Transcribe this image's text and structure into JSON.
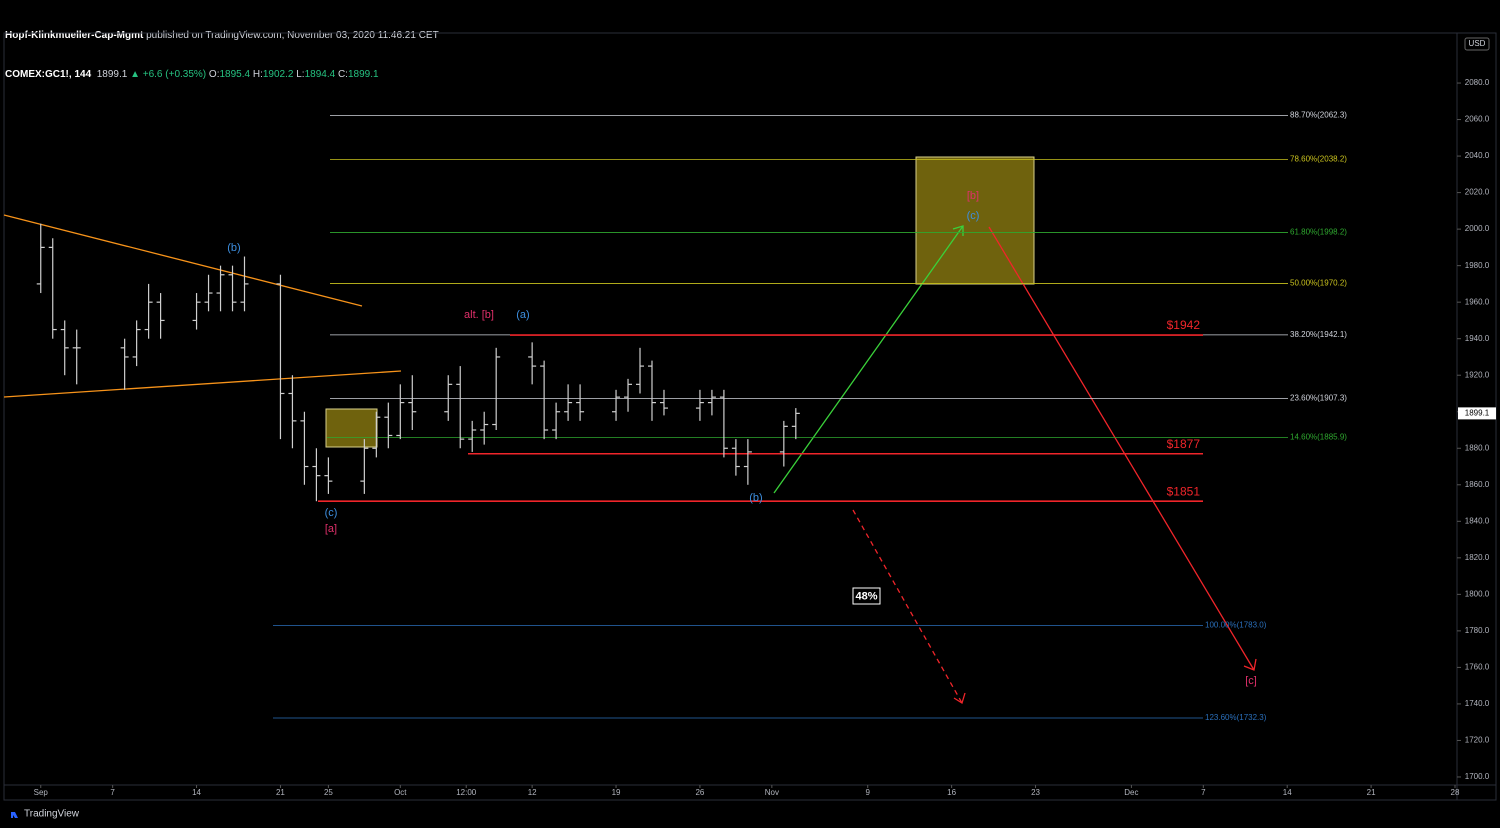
{
  "header": {
    "author": "Hopf-Klinkmueller-Cap-Mgmt",
    "published": "published on TradingView.com, November 03, 2020 11:46:21 CET",
    "symbol": "COMEX:GC1!, 144",
    "last": "1899.1",
    "change": "▲ +6.6 (+0.35%)",
    "ohlc": [
      {
        "label": "O:",
        "value": "1895.4"
      },
      {
        "label": "H:",
        "value": "1902.2"
      },
      {
        "label": "L:",
        "value": "1894.4"
      },
      {
        "label": "C:",
        "value": "1899.1"
      }
    ]
  },
  "chart_data": {
    "type": "ohlc",
    "color": "#cfcfcf",
    "currency": "USD",
    "x": [
      0,
      1,
      2,
      3,
      7,
      8,
      9,
      10,
      13,
      14,
      15,
      16,
      17,
      20,
      21,
      22,
      23,
      24,
      27,
      28,
      29,
      30,
      31,
      34,
      35,
      36,
      37,
      38,
      41,
      42,
      43,
      44,
      45,
      48,
      49,
      50,
      51,
      52,
      55,
      56,
      57,
      58,
      59,
      62,
      63
    ],
    "open": [
      1970,
      1990,
      1945,
      1935,
      1935,
      1930,
      1945,
      1960,
      1950,
      1960,
      1965,
      1975,
      1960,
      1970,
      1910,
      1895,
      1870,
      1865,
      1862,
      1880,
      1897,
      1887,
      1905,
      1900,
      1915,
      1885,
      1890,
      1893,
      1930,
      1925,
      1890,
      1900,
      1905,
      1900,
      1908,
      1915,
      1925,
      1905,
      1902,
      1905,
      1908,
      1880,
      1870,
      1878,
      1892
    ],
    "high": [
      2003,
      1995,
      1950,
      1945,
      1940,
      1950,
      1970,
      1965,
      1965,
      1975,
      1980,
      1980,
      1985,
      1975,
      1920,
      1900,
      1880,
      1875,
      1885,
      1900,
      1905,
      1915,
      1920,
      1920,
      1925,
      1895,
      1900,
      1935,
      1938,
      1928,
      1905,
      1915,
      1915,
      1912,
      1918,
      1935,
      1928,
      1912,
      1912,
      1912,
      1912,
      1885,
      1885,
      1895,
      1902
    ],
    "low": [
      1965,
      1940,
      1920,
      1915,
      1912,
      1925,
      1940,
      1940,
      1945,
      1955,
      1955,
      1955,
      1955,
      1885,
      1880,
      1860,
      1851,
      1855,
      1855,
      1875,
      1880,
      1885,
      1890,
      1895,
      1880,
      1878,
      1882,
      1890,
      1915,
      1885,
      1885,
      1895,
      1895,
      1895,
      1900,
      1910,
      1895,
      1898,
      1895,
      1898,
      1875,
      1865,
      1860,
      1870,
      1885
    ],
    "close": [
      1990,
      1945,
      1935,
      1935,
      1930,
      1945,
      1960,
      1950,
      1960,
      1965,
      1975,
      1960,
      1970,
      1910,
      1895,
      1870,
      1865,
      1862,
      1880,
      1897,
      1887,
      1905,
      1900,
      1915,
      1885,
      1890,
      1893,
      1930,
      1925,
      1890,
      1900,
      1905,
      1900,
      1908,
      1915,
      1925,
      1905,
      1902,
      1905,
      1908,
      1880,
      1870,
      1878,
      1892,
      1899.1
    ],
    "xlim": [
      -3.4,
      118
    ],
    "xticks": [
      {
        "value": 0,
        "label": "Sep"
      },
      {
        "value": 6,
        "label": "7"
      },
      {
        "value": 13,
        "label": "14"
      },
      {
        "value": 20,
        "label": "21"
      },
      {
        "value": 24,
        "label": "25"
      },
      {
        "value": 30,
        "label": "Oct"
      },
      {
        "value": 35.5,
        "label": "12:00"
      },
      {
        "value": 41,
        "label": "12"
      },
      {
        "value": 48,
        "label": "19"
      },
      {
        "value": 55,
        "label": "26"
      },
      {
        "value": 61,
        "label": "Nov"
      },
      {
        "value": 69,
        "label": "9"
      },
      {
        "value": 76,
        "label": "16"
      },
      {
        "value": 83,
        "label": "23"
      },
      {
        "value": 91,
        "label": "Dec"
      },
      {
        "value": 97,
        "label": "7"
      },
      {
        "value": 104,
        "label": "14"
      },
      {
        "value": 111,
        "label": "21"
      },
      {
        "value": 118,
        "label": "28"
      }
    ],
    "ylim": [
      1695.6,
      2107.4
    ],
    "yticks": [
      {
        "value": 1700,
        "label": "1700.0"
      },
      {
        "value": 1720,
        "label": "1720.0"
      },
      {
        "value": 1740,
        "label": "1740.0"
      },
      {
        "value": 1760,
        "label": "1760.0"
      },
      {
        "value": 1780,
        "label": "1780.0"
      },
      {
        "value": 1800,
        "label": "1800.0"
      },
      {
        "value": 1820,
        "label": "1820.0"
      },
      {
        "value": 1840,
        "label": "1840.0"
      },
      {
        "value": 1860,
        "label": "1860.0"
      },
      {
        "value": 1880,
        "label": "1880.0"
      },
      {
        "value": 1900,
        "label": "1900.0"
      },
      {
        "value": 1920,
        "label": "1920.0"
      },
      {
        "value": 1940,
        "label": "1940.0"
      },
      {
        "value": 1960,
        "label": "1960.0"
      },
      {
        "value": 1980,
        "label": "1980.0"
      },
      {
        "value": 2000,
        "label": "2000.0"
      },
      {
        "value": 2020,
        "label": "2020.0"
      },
      {
        "value": 2040,
        "label": "2040.0"
      },
      {
        "value": 2060,
        "label": "2060.0"
      },
      {
        "value": 2080,
        "label": "2080.0"
      }
    ],
    "fib_levels": [
      {
        "label": "88.70%(2062.3)",
        "price": 2062.3,
        "color": "#d1d4dc"
      },
      {
        "label": "78.60%(2038.2)",
        "price": 2038.2,
        "color": "#c9c21e"
      },
      {
        "label": "61.80%(1998.2)",
        "price": 1998.2,
        "color": "#2fa82f"
      },
      {
        "label": "50.00%(1970.2)",
        "price": 1970.2,
        "color": "#c9c21e"
      },
      {
        "label": "38.20%(1942.1)",
        "price": 1942.1,
        "color": "#d1d4dc"
      },
      {
        "label": "23.60%(1907.3)",
        "price": 1907.3,
        "color": "#d1d4dc"
      },
      {
        "label": "14.60%(1885.9)",
        "price": 1885.9,
        "color": "#2fa82f"
      },
      {
        "label": "100.00%(1783.0)",
        "price": 1783.0,
        "color": "#2a6fbb"
      },
      {
        "label": "123.60%(1732.3)",
        "price": 1732.3,
        "color": "#2a6fbb"
      }
    ],
    "levels": [
      {
        "label": "$1942",
        "price": 1942,
        "color": "#f0252a"
      },
      {
        "label": "$1877",
        "price": 1877,
        "color": "#f0252a"
      },
      {
        "label": "$1851",
        "price": 1851,
        "color": "#f0252a"
      }
    ],
    "annotations": [
      "(b)",
      "(c)",
      "[a]",
      "alt. [b]",
      "(a)",
      "(b)",
      "[b]",
      "(c)",
      "[c]"
    ],
    "probability": "48%"
  },
  "footer": {
    "brand": "TradingView"
  }
}
